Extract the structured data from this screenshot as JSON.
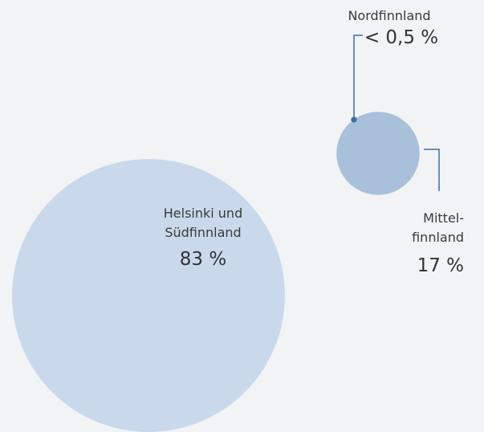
{
  "chart_data": {
    "type": "bubble",
    "categories": [
      "Helsinki und\nSüdfinnland",
      "Mittel-\nfinnland",
      "Nordfinnland"
    ],
    "values": [
      83,
      17,
      0.5
    ],
    "value_labels": [
      "83 %",
      "17 %",
      "< 0,5 %"
    ],
    "colors": [
      "#c9d9eb",
      "#a9c0da",
      "#3e6e9f"
    ]
  }
}
